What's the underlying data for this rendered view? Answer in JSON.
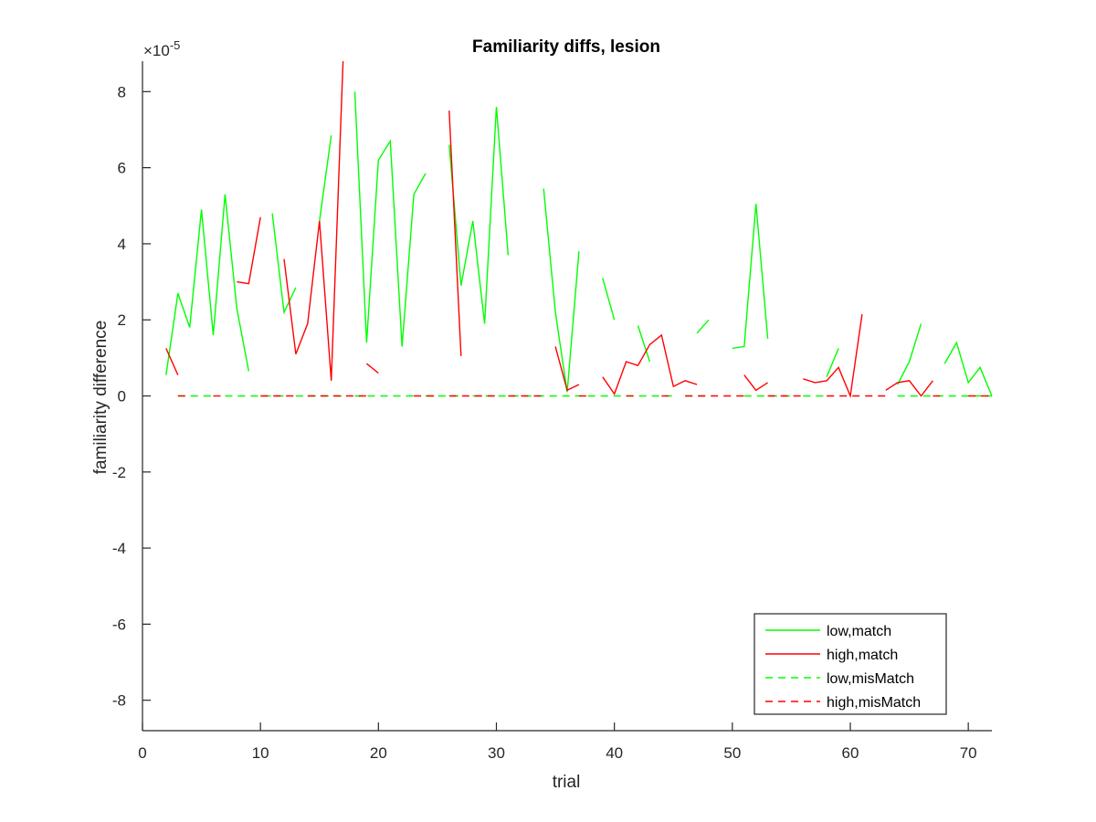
{
  "chart_data": {
    "type": "line",
    "title": "Familiarity diffs, lesion",
    "xlabel": "trial",
    "ylabel": "familiarity difference",
    "y_exponent_label": "×10",
    "y_exponent_power": "-5",
    "y_exponent": -5,
    "xlim": [
      0,
      72
    ],
    "ylim": [
      -8.8,
      8.8
    ],
    "x_ticks": [
      0,
      10,
      20,
      30,
      40,
      50,
      60,
      70
    ],
    "y_ticks": [
      -8,
      -6,
      -4,
      -2,
      0,
      2,
      4,
      6,
      8
    ],
    "grid": false,
    "legend_position": "bottom-right",
    "series": [
      {
        "name": "low,match",
        "color": "#00ff00",
        "style": "solid",
        "points": [
          [
            2,
            0.55
          ],
          [
            3,
            2.7
          ],
          [
            4,
            1.8
          ],
          [
            5,
            4.9
          ],
          [
            6,
            1.6
          ],
          [
            7,
            5.3
          ],
          [
            8,
            2.3
          ],
          [
            9,
            0.65
          ],
          null,
          [
            11,
            4.8
          ],
          [
            12,
            2.2
          ],
          [
            13,
            2.85
          ],
          null,
          [
            15,
            4.6
          ],
          [
            16,
            6.85
          ],
          null,
          [
            18,
            8.0
          ],
          [
            19,
            1.4
          ],
          [
            20,
            6.2
          ],
          [
            21,
            6.7
          ],
          [
            22,
            1.3
          ],
          [
            23,
            5.3
          ],
          [
            24,
            5.85
          ],
          null,
          [
            26,
            6.6
          ],
          [
            27,
            2.9
          ],
          [
            28,
            4.6
          ],
          [
            29,
            1.9
          ],
          [
            30,
            7.6
          ],
          [
            31,
            3.7
          ],
          null,
          [
            34,
            5.45
          ],
          [
            35,
            2.2
          ],
          [
            36,
            0.1
          ],
          [
            37,
            3.8
          ],
          null,
          [
            39,
            3.1
          ],
          [
            40,
            2.0
          ],
          null,
          [
            42,
            1.85
          ],
          [
            43,
            0.9
          ],
          null,
          [
            47,
            1.65
          ],
          [
            48,
            2.0
          ],
          null,
          [
            50,
            1.25
          ],
          [
            51,
            1.3
          ],
          [
            52,
            5.05
          ],
          [
            53,
            1.5
          ],
          null,
          [
            58,
            0.5
          ],
          [
            59,
            1.25
          ],
          null,
          [
            64,
            0.3
          ],
          [
            65,
            0.9
          ],
          [
            66,
            1.9
          ],
          null,
          [
            68,
            0.85
          ],
          [
            69,
            1.4
          ],
          [
            70,
            0.35
          ],
          [
            71,
            0.75
          ],
          [
            72,
            0.0
          ]
        ]
      },
      {
        "name": "high,match",
        "color": "#ff0000",
        "style": "solid",
        "points": [
          [
            2,
            1.25
          ],
          [
            3,
            0.55
          ],
          null,
          [
            8,
            3.0
          ],
          [
            9,
            2.95
          ],
          [
            10,
            4.7
          ],
          null,
          [
            12,
            3.6
          ],
          [
            13,
            1.1
          ],
          [
            14,
            1.9
          ],
          [
            15,
            4.6
          ],
          [
            16,
            0.4
          ],
          [
            17,
            8.8
          ],
          null,
          [
            19,
            0.85
          ],
          [
            20,
            0.6
          ],
          null,
          [
            26,
            7.5
          ],
          [
            27,
            1.05
          ],
          null,
          [
            35,
            1.3
          ],
          [
            36,
            0.15
          ],
          [
            37,
            0.3
          ],
          null,
          [
            39,
            0.5
          ],
          [
            40,
            0.05
          ],
          [
            41,
            0.9
          ],
          [
            42,
            0.8
          ],
          [
            43,
            1.35
          ],
          [
            44,
            1.6
          ],
          [
            45,
            0.25
          ],
          [
            46,
            0.4
          ],
          [
            47,
            0.3
          ],
          null,
          [
            51,
            0.55
          ],
          [
            52,
            0.15
          ],
          [
            53,
            0.35
          ],
          null,
          [
            56,
            0.45
          ],
          [
            57,
            0.35
          ],
          [
            58,
            0.4
          ],
          [
            59,
            0.75
          ],
          [
            60,
            0.0
          ],
          [
            61,
            2.15
          ],
          null,
          [
            63,
            0.15
          ],
          [
            64,
            0.35
          ],
          [
            65,
            0.4
          ],
          [
            66,
            0.0
          ],
          [
            67,
            0.4
          ]
        ]
      },
      {
        "name": "low,misMatch",
        "color": "#00ff00",
        "style": "dashed",
        "points": [
          [
            3,
            0
          ],
          [
            6,
            0
          ],
          null,
          [
            7,
            0
          ],
          [
            12,
            0
          ],
          null,
          [
            13,
            0
          ],
          [
            17,
            0
          ],
          null,
          [
            18,
            0
          ],
          [
            23,
            0
          ],
          null,
          [
            24,
            0
          ],
          [
            27,
            0
          ],
          null,
          [
            28,
            0
          ],
          [
            45,
            0
          ],
          null,
          [
            46,
            0
          ],
          [
            48,
            0
          ],
          null,
          [
            51,
            0
          ],
          [
            55,
            0
          ],
          null,
          [
            56,
            0
          ],
          [
            58,
            0
          ],
          null,
          [
            64,
            0
          ],
          [
            72,
            0
          ]
        ]
      },
      {
        "name": "high,misMatch",
        "color": "#ff0000",
        "style": "dashed",
        "points": [
          [
            3,
            0
          ],
          [
            4,
            0
          ],
          null,
          [
            6,
            0
          ],
          [
            7,
            0
          ],
          null,
          [
            10,
            0
          ],
          [
            13,
            0
          ],
          null,
          [
            14,
            0
          ],
          [
            19,
            0
          ],
          null,
          [
            23,
            0
          ],
          [
            25,
            0
          ],
          null,
          [
            26,
            0
          ],
          [
            30,
            0
          ],
          null,
          [
            31,
            0
          ],
          [
            34,
            0
          ],
          null,
          [
            37,
            0
          ],
          [
            38,
            0
          ],
          null,
          [
            41,
            0
          ],
          [
            42,
            0
          ],
          null,
          [
            44,
            0
          ],
          [
            45,
            0
          ],
          null,
          [
            46,
            0
          ],
          [
            51,
            0
          ],
          null,
          [
            53,
            0
          ],
          [
            56,
            0
          ],
          null,
          [
            58,
            0
          ],
          [
            63,
            0
          ],
          null,
          [
            67,
            0
          ],
          [
            68,
            0
          ],
          null,
          [
            70,
            0
          ],
          [
            72,
            0
          ]
        ]
      }
    ]
  }
}
